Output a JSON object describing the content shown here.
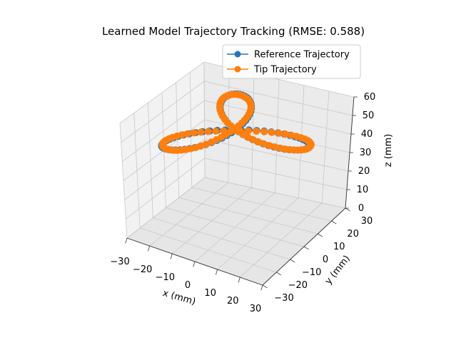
{
  "chart_data": {
    "type": "line",
    "projection": "3d",
    "title": "Learned Model Trajectory Tracking (RMSE: 0.588)",
    "xlabel": "x (mm)",
    "ylabel": "y (mm)",
    "zlabel": "z (mm)",
    "xlim": [
      -30,
      30
    ],
    "ylim": [
      -30,
      30
    ],
    "zlim": [
      0,
      60
    ],
    "x_ticks": [
      "−30",
      "−20",
      "−10",
      "0",
      "10",
      "20",
      "30"
    ],
    "y_ticks": [
      "−30",
      "−20",
      "−10",
      "0",
      "10",
      "20",
      "30"
    ],
    "z_ticks": [
      "0",
      "10",
      "20",
      "30",
      "40",
      "50",
      "60"
    ],
    "grid": true,
    "legend_position": "top-right",
    "series": [
      {
        "name": "Reference Trajectory",
        "color": "#1f77b4",
        "marker": "circle",
        "shape": "three-lobed rose curve, x = 30·cos(3t)·cos(t), y = 30·cos(3t)·sin(t), z = 50"
      },
      {
        "name": "Tip Trajectory",
        "color": "#ff7f0e",
        "marker": "circle",
        "shape": "tracks the reference trajectory closely"
      }
    ]
  }
}
